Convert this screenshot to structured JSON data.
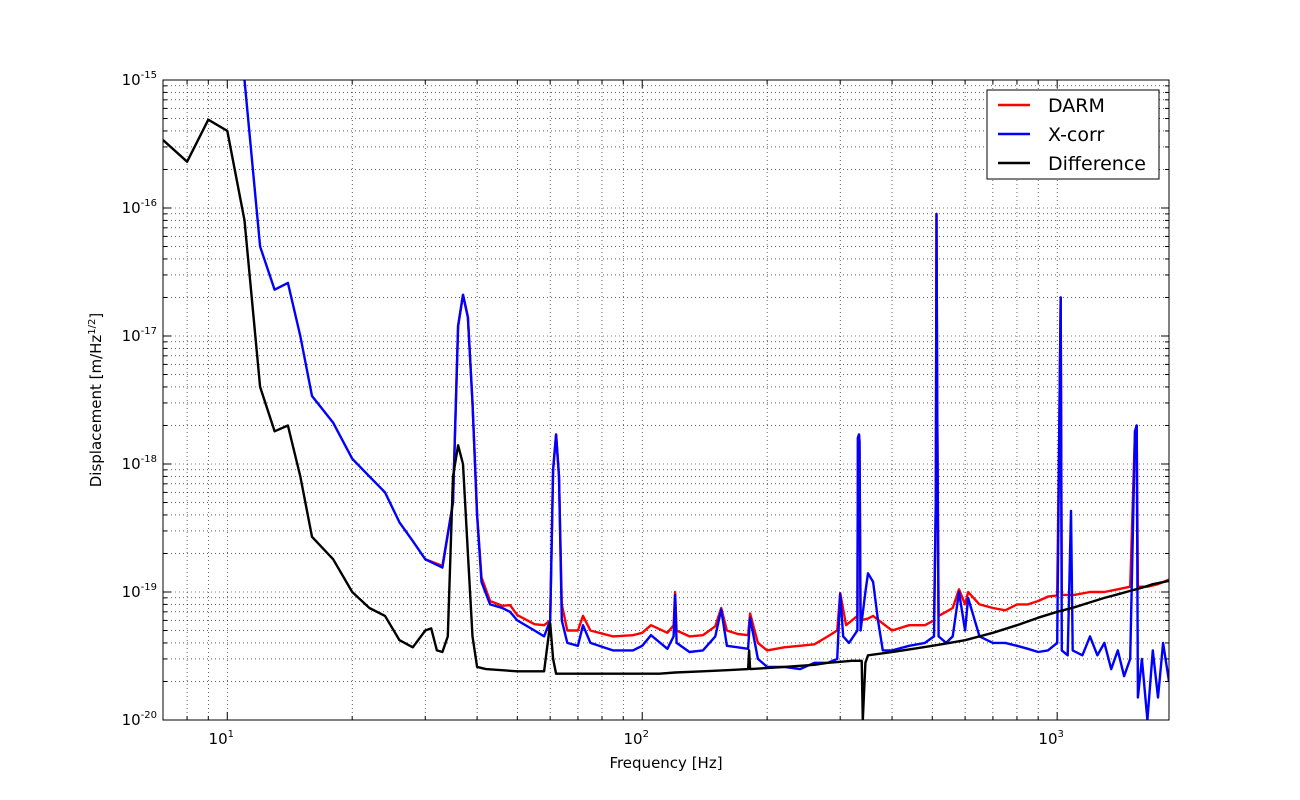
{
  "chart_data": {
    "type": "line",
    "xscale": "log",
    "yscale": "log",
    "xlim": [
      7,
      1860
    ],
    "ylim": [
      1e-20,
      1e-15
    ],
    "grid": true,
    "legend_position": "top-right",
    "xlabel": "Frequency [Hz]",
    "ylabel_main": "Displacement [m/Hz",
    "ylabel_sup": "1/2",
    "ylabel_end": "]",
    "x_ticks": [
      {
        "base": "10",
        "exp": "1",
        "value": 10
      },
      {
        "base": "10",
        "exp": "2",
        "value": 100
      },
      {
        "base": "10",
        "exp": "3",
        "value": 1000
      }
    ],
    "y_ticks": [
      {
        "base": "10",
        "exp": "-20",
        "value": 1e-20
      },
      {
        "base": "10",
        "exp": "-19",
        "value": 1e-19
      },
      {
        "base": "10",
        "exp": "-18",
        "value": 1e-18
      },
      {
        "base": "10",
        "exp": "-17",
        "value": 1e-17
      },
      {
        "base": "10",
        "exp": "-16",
        "value": 1e-16
      },
      {
        "base": "10",
        "exp": "-15",
        "value": 1e-15
      }
    ],
    "series": [
      {
        "name": "DARM",
        "color": "#ff0000",
        "points": [
          [
            30,
            1.8e-19
          ],
          [
            33,
            1.6e-19
          ],
          [
            35,
            5e-19
          ],
          [
            36,
            1.2e-17
          ],
          [
            37,
            2.1e-17
          ],
          [
            38,
            1.4e-17
          ],
          [
            39,
            3e-18
          ],
          [
            40,
            4e-19
          ],
          [
            41,
            1.3e-19
          ],
          [
            43,
            8.5e-20
          ],
          [
            46,
            7.8e-20
          ],
          [
            48,
            7.9e-20
          ],
          [
            50,
            6.6e-20
          ],
          [
            55,
            5.6e-20
          ],
          [
            58,
            5.5e-20
          ],
          [
            60,
            6e-20
          ],
          [
            61,
            9e-19
          ],
          [
            62,
            1.7e-18
          ],
          [
            63,
            8e-19
          ],
          [
            64,
            8e-20
          ],
          [
            66,
            5e-20
          ],
          [
            70,
            5e-20
          ],
          [
            72,
            6.5e-20
          ],
          [
            75,
            5e-20
          ],
          [
            85,
            4.5e-20
          ],
          [
            95,
            4.6e-20
          ],
          [
            100,
            4.8e-20
          ],
          [
            105,
            5.5e-20
          ],
          [
            115,
            4.8e-20
          ],
          [
            119,
            5.5e-20
          ],
          [
            120,
            1e-19
          ],
          [
            121,
            5e-20
          ],
          [
            130,
            4.5e-20
          ],
          [
            140,
            4.6e-20
          ],
          [
            150,
            5.4e-20
          ],
          [
            155,
            7.5e-20
          ],
          [
            160,
            5e-20
          ],
          [
            170,
            4.7e-20
          ],
          [
            180,
            4.6e-20
          ],
          [
            182,
            6.8e-20
          ],
          [
            190,
            4e-20
          ],
          [
            200,
            3.5e-20
          ],
          [
            220,
            3.7e-20
          ],
          [
            240,
            3.8e-20
          ],
          [
            260,
            3.9e-20
          ],
          [
            280,
            4.5e-20
          ],
          [
            295,
            5e-20
          ],
          [
            300,
            9.8e-20
          ],
          [
            310,
            5.5e-20
          ],
          [
            330,
            6.5e-20
          ],
          [
            331,
            1.6e-18
          ],
          [
            333,
            1.7e-18
          ],
          [
            334,
            1.5e-18
          ],
          [
            336,
            6e-20
          ],
          [
            350,
            6.2e-20
          ],
          [
            360,
            6.5e-20
          ],
          [
            400,
            5e-20
          ],
          [
            440,
            5.5e-20
          ],
          [
            480,
            5.5e-20
          ],
          [
            505,
            6e-20
          ],
          [
            510,
            5e-19
          ],
          [
            512,
            9e-17
          ],
          [
            514,
            3e-18
          ],
          [
            518,
            6.5e-20
          ],
          [
            540,
            7e-20
          ],
          [
            560,
            7.5e-20
          ],
          [
            580,
            1.05e-19
          ],
          [
            600,
            8e-20
          ],
          [
            610,
            1e-19
          ],
          [
            650,
            8e-20
          ],
          [
            700,
            7.5e-20
          ],
          [
            750,
            7.2e-20
          ],
          [
            800,
            8e-20
          ],
          [
            850,
            8e-20
          ],
          [
            900,
            8.5e-20
          ],
          [
            950,
            9.2e-20
          ],
          [
            1000,
            9.4e-20
          ],
          [
            1012,
            2e-18
          ],
          [
            1020,
            2e-17
          ],
          [
            1026,
            9.5e-20
          ],
          [
            1100,
            9.5e-20
          ],
          [
            1200,
            1e-19
          ],
          [
            1300,
            1e-19
          ],
          [
            1400,
            1.05e-19
          ],
          [
            1500,
            1.1e-19
          ],
          [
            1540,
            1.8e-18
          ],
          [
            1555,
            2e-18
          ],
          [
            1565,
            1.1e-19
          ],
          [
            1650,
            1.1e-19
          ],
          [
            1750,
            1.15e-19
          ],
          [
            1860,
            1.25e-19
          ]
        ]
      },
      {
        "name": "X-corr",
        "color": "#0000ff",
        "points": [
          [
            11,
            1e-15
          ],
          [
            12,
            5e-17
          ],
          [
            13,
            2.3e-17
          ],
          [
            14,
            2.6e-17
          ],
          [
            15,
            1e-17
          ],
          [
            16,
            3.4e-18
          ],
          [
            18,
            2.1e-18
          ],
          [
            20,
            1.1e-18
          ],
          [
            22,
            8e-19
          ],
          [
            24,
            6e-19
          ],
          [
            26,
            3.5e-19
          ],
          [
            28,
            2.5e-19
          ],
          [
            30,
            1.8e-19
          ],
          [
            33,
            1.55e-19
          ],
          [
            35,
            5e-19
          ],
          [
            36,
            1.2e-17
          ],
          [
            37,
            2.1e-17
          ],
          [
            38,
            1.4e-17
          ],
          [
            39,
            3e-18
          ],
          [
            40,
            4e-19
          ],
          [
            41,
            1.2e-19
          ],
          [
            43,
            8e-20
          ],
          [
            46,
            7.5e-20
          ],
          [
            48,
            7e-20
          ],
          [
            50,
            6e-20
          ],
          [
            55,
            5e-20
          ],
          [
            58,
            4.5e-20
          ],
          [
            60,
            6e-20
          ],
          [
            61,
            9e-19
          ],
          [
            62,
            1.7e-18
          ],
          [
            63,
            8e-19
          ],
          [
            64,
            6e-20
          ],
          [
            66,
            4e-20
          ],
          [
            70,
            3.8e-20
          ],
          [
            72,
            5.5e-20
          ],
          [
            75,
            4e-20
          ],
          [
            85,
            3.5e-20
          ],
          [
            95,
            3.5e-20
          ],
          [
            100,
            3.8e-20
          ],
          [
            105,
            4.6e-20
          ],
          [
            115,
            3.6e-20
          ],
          [
            119,
            4.5e-20
          ],
          [
            120,
            9.5e-20
          ],
          [
            121,
            4e-20
          ],
          [
            130,
            3.4e-20
          ],
          [
            140,
            3.5e-20
          ],
          [
            150,
            4.5e-20
          ],
          [
            155,
            7.3e-20
          ],
          [
            160,
            3.8e-20
          ],
          [
            170,
            3.7e-20
          ],
          [
            180,
            3.6e-20
          ],
          [
            182,
            6.3e-20
          ],
          [
            190,
            3e-20
          ],
          [
            200,
            2.6e-20
          ],
          [
            220,
            2.6e-20
          ],
          [
            240,
            2.5e-20
          ],
          [
            260,
            2.8e-20
          ],
          [
            280,
            2.8e-20
          ],
          [
            295,
            3e-20
          ],
          [
            300,
            9.7e-20
          ],
          [
            305,
            4.5e-20
          ],
          [
            315,
            4e-20
          ],
          [
            330,
            5e-20
          ],
          [
            331,
            1.6e-18
          ],
          [
            333,
            1.7e-18
          ],
          [
            334,
            1.5e-18
          ],
          [
            336,
            5e-20
          ],
          [
            345,
            1e-19
          ],
          [
            350,
            1.4e-19
          ],
          [
            360,
            1.2e-19
          ],
          [
            370,
            6e-20
          ],
          [
            380,
            3.5e-20
          ],
          [
            400,
            3.5e-20
          ],
          [
            440,
            3.8e-20
          ],
          [
            480,
            4e-20
          ],
          [
            505,
            4.5e-20
          ],
          [
            510,
            5e-19
          ],
          [
            512,
            9e-17
          ],
          [
            514,
            3e-18
          ],
          [
            518,
            4.5e-20
          ],
          [
            540,
            4e-20
          ],
          [
            560,
            4.5e-20
          ],
          [
            580,
            1e-19
          ],
          [
            600,
            5e-20
          ],
          [
            610,
            9e-20
          ],
          [
            650,
            4.5e-20
          ],
          [
            700,
            4e-20
          ],
          [
            750,
            4e-20
          ],
          [
            800,
            3.8e-20
          ],
          [
            850,
            3.6e-20
          ],
          [
            900,
            3.4e-20
          ],
          [
            950,
            3.5e-20
          ],
          [
            1000,
            4e-20
          ],
          [
            1012,
            2e-18
          ],
          [
            1020,
            2e-17
          ],
          [
            1026,
            3.5e-20
          ],
          [
            1060,
            3.2e-20
          ],
          [
            1080,
            4.3e-19
          ],
          [
            1090,
            3.5e-20
          ],
          [
            1150,
            3.2e-20
          ],
          [
            1200,
            4.5e-20
          ],
          [
            1250,
            3.2e-20
          ],
          [
            1300,
            4e-20
          ],
          [
            1350,
            2.5e-20
          ],
          [
            1400,
            3.5e-20
          ],
          [
            1450,
            2.2e-20
          ],
          [
            1500,
            3e-20
          ],
          [
            1540,
            1.8e-18
          ],
          [
            1555,
            2e-18
          ],
          [
            1565,
            1.5e-20
          ],
          [
            1600,
            3e-20
          ],
          [
            1650,
            1e-20
          ],
          [
            1700,
            3.5e-20
          ],
          [
            1750,
            1.5e-20
          ],
          [
            1800,
            4e-20
          ],
          [
            1860,
            2e-20
          ]
        ]
      },
      {
        "name": "Difference",
        "color": "#000000",
        "points": [
          [
            7,
            3.4e-16
          ],
          [
            8,
            2.3e-16
          ],
          [
            9,
            4.9e-16
          ],
          [
            10,
            4e-16
          ],
          [
            11,
            8e-17
          ],
          [
            12,
            4e-18
          ],
          [
            13,
            1.8e-18
          ],
          [
            14,
            2e-18
          ],
          [
            15,
            8e-19
          ],
          [
            16,
            2.7e-19
          ],
          [
            18,
            1.8e-19
          ],
          [
            20,
            1e-19
          ],
          [
            22,
            7.5e-20
          ],
          [
            24,
            6.5e-20
          ],
          [
            26,
            4.2e-20
          ],
          [
            28,
            3.7e-20
          ],
          [
            30,
            5e-20
          ],
          [
            31,
            5.2e-20
          ],
          [
            32,
            3.5e-20
          ],
          [
            33,
            3.4e-20
          ],
          [
            34,
            4.5e-20
          ],
          [
            35,
            8e-19
          ],
          [
            36,
            1.4e-18
          ],
          [
            37,
            1e-18
          ],
          [
            38,
            2e-19
          ],
          [
            39,
            4.5e-20
          ],
          [
            40,
            2.6e-20
          ],
          [
            42,
            2.5e-20
          ],
          [
            50,
            2.4e-20
          ],
          [
            58,
            2.4e-20
          ],
          [
            60,
            5.7e-20
          ],
          [
            61,
            3e-20
          ],
          [
            62,
            2.3e-20
          ],
          [
            70,
            2.3e-20
          ],
          [
            90,
            2.3e-20
          ],
          [
            100,
            2.3e-20
          ],
          [
            110,
            2.3e-20
          ],
          [
            120,
            2.35e-20
          ],
          [
            140,
            2.4e-20
          ],
          [
            160,
            2.45e-20
          ],
          [
            180,
            2.5e-20
          ],
          [
            181,
            3.5e-20
          ],
          [
            182,
            2.5e-20
          ],
          [
            200,
            2.55e-20
          ],
          [
            220,
            2.6e-20
          ],
          [
            240,
            2.65e-20
          ],
          [
            260,
            2.7e-20
          ],
          [
            280,
            2.8e-20
          ],
          [
            300,
            2.85e-20
          ],
          [
            320,
            2.9e-20
          ],
          [
            338,
            2.9e-20
          ],
          [
            340,
            1e-20
          ],
          [
            345,
            2.8e-20
          ],
          [
            350,
            3.2e-20
          ],
          [
            400,
            3.4e-20
          ],
          [
            450,
            3.6e-20
          ],
          [
            500,
            3.8e-20
          ],
          [
            550,
            4e-20
          ],
          [
            600,
            4.2e-20
          ],
          [
            700,
            4.8e-20
          ],
          [
            800,
            5.5e-20
          ],
          [
            900,
            6.3e-20
          ],
          [
            1000,
            7e-20
          ],
          [
            1100,
            7.6e-20
          ],
          [
            1200,
            8.3e-20
          ],
          [
            1300,
            9e-20
          ],
          [
            1400,
            9.6e-20
          ],
          [
            1500,
            1.02e-19
          ],
          [
            1600,
            1.08e-19
          ],
          [
            1700,
            1.15e-19
          ],
          [
            1860,
            1.22e-19
          ]
        ]
      }
    ]
  }
}
